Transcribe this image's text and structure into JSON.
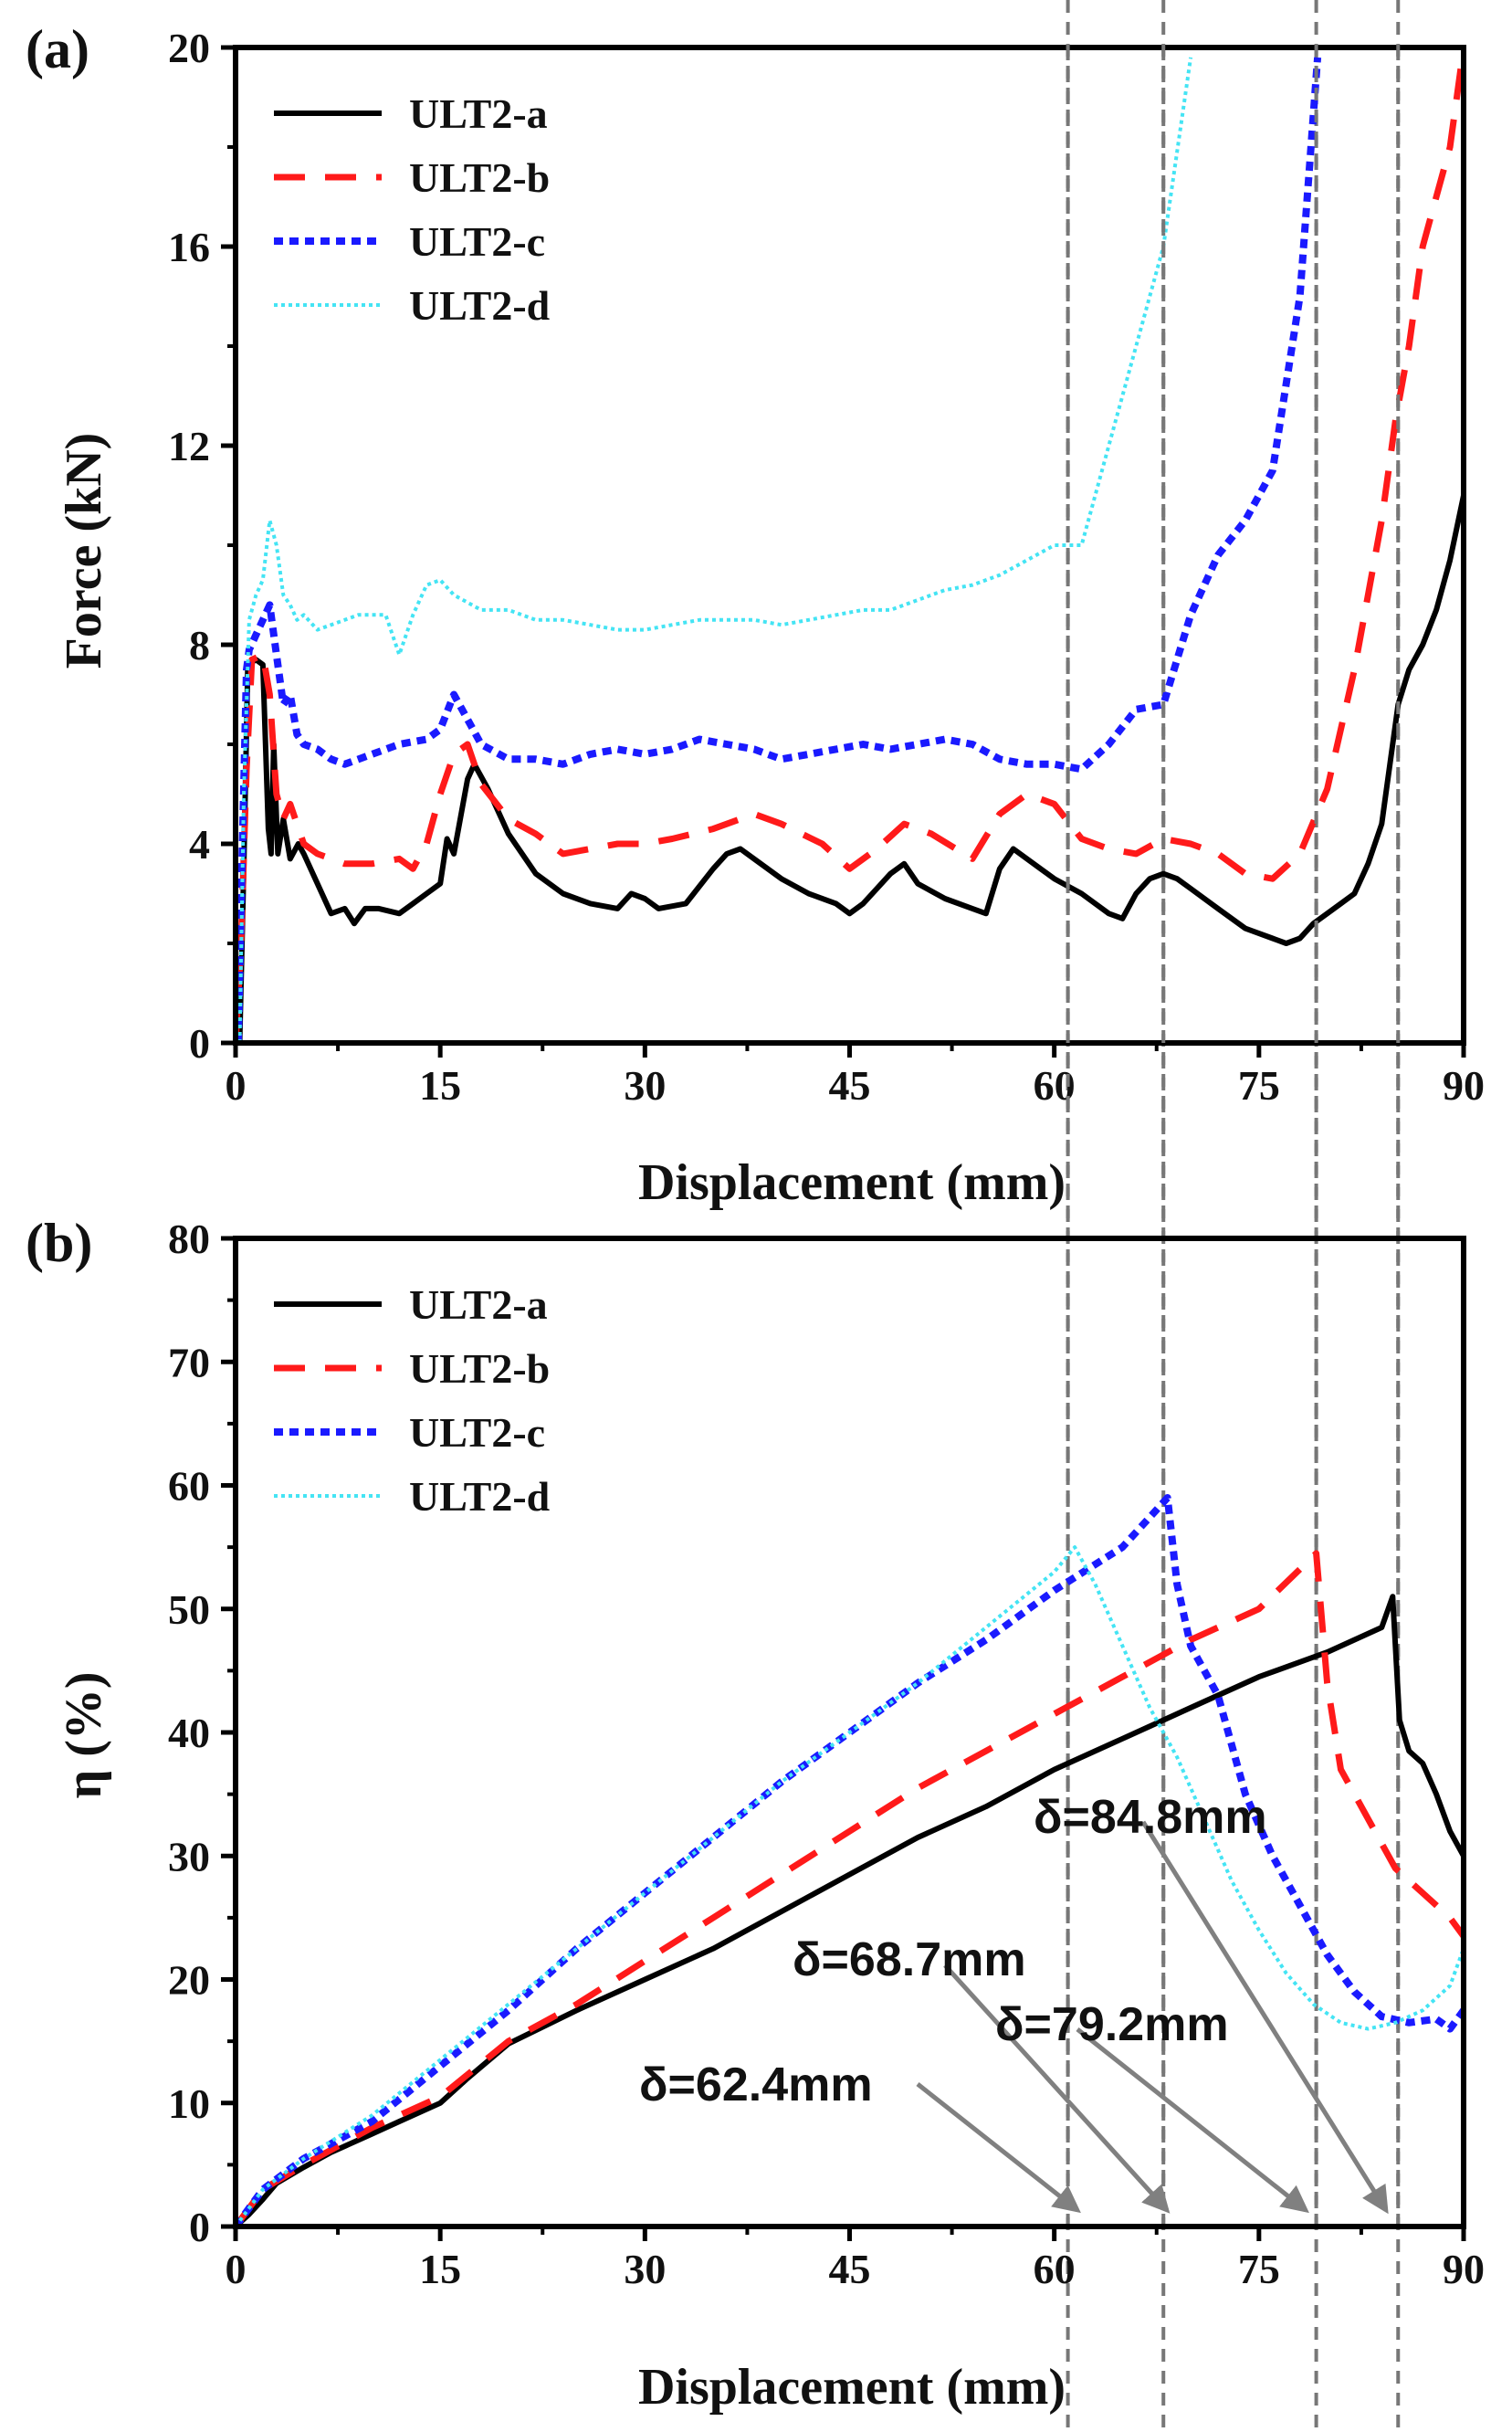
{
  "chart_data": [
    {
      "panel": "(a)",
      "type": "line",
      "xlabel": "Displacement (mm)",
      "ylabel": "Force (kN)",
      "xlim": [
        0,
        90
      ],
      "ylim": [
        0,
        20
      ],
      "xticks": [
        0,
        15,
        30,
        45,
        60,
        75,
        90
      ],
      "yticks": [
        0,
        4,
        8,
        12,
        16,
        20
      ],
      "grid": false,
      "legend": "top-left",
      "reference_lines_x": [
        61.0,
        68.0,
        79.2,
        85.2
      ],
      "series": [
        {
          "name": "ULT2-a",
          "color": "#000000",
          "style": "solid",
          "x": [
            0.3,
            0.6,
            0.9,
            1.5,
            2.0,
            2.4,
            2.6,
            2.8,
            3.1,
            3.5,
            4.0,
            4.6,
            5.0,
            6.0,
            7.0,
            8.0,
            8.7,
            9.5,
            10.5,
            12,
            13,
            14,
            15,
            15.5,
            16,
            17,
            17.5,
            18.5,
            20,
            22,
            24,
            26,
            28,
            29,
            30,
            31,
            33,
            35,
            36,
            37,
            38,
            40,
            42,
            44,
            45,
            46,
            47,
            48,
            49,
            50,
            52,
            54,
            55,
            56,
            57,
            59,
            60,
            62,
            64,
            65,
            66,
            67,
            68,
            69,
            70,
            72,
            74,
            76,
            77,
            78,
            79,
            80,
            81,
            82,
            83,
            84,
            84.6,
            85.2,
            86,
            87,
            88,
            89,
            90
          ],
          "values": [
            0,
            3.5,
            7.6,
            7.7,
            7.6,
            4.3,
            3.8,
            6.0,
            3.8,
            4.5,
            3.7,
            4.0,
            3.8,
            3.2,
            2.6,
            2.7,
            2.4,
            2.7,
            2.7,
            2.6,
            2.8,
            3.0,
            3.2,
            4.1,
            3.8,
            5.3,
            5.6,
            5.1,
            4.2,
            3.4,
            3.0,
            2.8,
            2.7,
            3.0,
            2.9,
            2.7,
            2.8,
            3.5,
            3.8,
            3.9,
            3.7,
            3.3,
            3.0,
            2.8,
            2.6,
            2.8,
            3.1,
            3.4,
            3.6,
            3.2,
            2.9,
            2.7,
            2.6,
            3.5,
            3.9,
            3.5,
            3.3,
            3.0,
            2.6,
            2.5,
            3.0,
            3.3,
            3.4,
            3.3,
            3.1,
            2.7,
            2.3,
            2.1,
            2.0,
            2.1,
            2.4,
            2.6,
            2.8,
            3.0,
            3.6,
            4.4,
            5.6,
            6.8,
            7.5,
            8.0,
            8.7,
            9.7,
            11.0
          ]
        },
        {
          "name": "ULT2-b",
          "color": "#ff1a1a",
          "style": "dashed",
          "x": [
            0,
            0.4,
            0.8,
            1.2,
            2.0,
            2.5,
            3.0,
            3.5,
            4.0,
            5.0,
            6.0,
            7.0,
            8.0,
            10,
            12,
            13,
            14,
            15,
            16,
            17,
            18,
            20,
            22,
            24,
            26,
            28,
            30,
            32,
            35,
            38,
            40,
            43,
            45,
            47,
            49,
            51,
            54,
            56,
            58,
            60,
            62,
            64,
            66,
            68,
            70,
            72,
            74,
            76,
            78,
            80,
            82,
            84,
            85,
            86,
            87,
            88,
            89,
            90
          ],
          "values": [
            0,
            2.0,
            5.5,
            7.7,
            7.8,
            7.0,
            5.0,
            4.5,
            4.8,
            4.0,
            3.8,
            3.7,
            3.6,
            3.6,
            3.7,
            3.5,
            4.0,
            5.0,
            5.8,
            6.0,
            5.2,
            4.5,
            4.2,
            3.8,
            3.9,
            4.0,
            4.0,
            4.1,
            4.3,
            4.6,
            4.4,
            4.0,
            3.5,
            3.9,
            4.4,
            4.2,
            3.7,
            4.6,
            5.0,
            4.8,
            4.1,
            3.9,
            3.8,
            4.1,
            4.0,
            3.8,
            3.4,
            3.3,
            3.8,
            5.1,
            7.5,
            10.5,
            12.5,
            14.0,
            16.0,
            17.0,
            18.0,
            20.0
          ]
        },
        {
          "name": "ULT2-c",
          "color": "#1a1aff",
          "style": "dotted",
          "x": [
            0.2,
            0.5,
            0.8,
            1.0,
            1.5,
            2.0,
            2.5,
            3.0,
            3.5,
            4.0,
            4.5,
            5.0,
            6.0,
            7.0,
            8.0,
            10,
            12,
            14,
            15,
            16,
            17,
            18,
            20,
            22,
            24,
            26,
            28,
            30,
            32,
            34,
            36,
            38,
            40,
            42,
            44,
            46,
            48,
            50,
            52,
            54,
            56,
            58,
            60,
            62,
            64,
            66,
            68,
            70,
            72,
            74,
            76,
            78,
            79.3
          ],
          "values": [
            0,
            4.0,
            7.5,
            7.9,
            8.2,
            8.5,
            8.8,
            7.8,
            6.8,
            7.0,
            6.2,
            6.0,
            5.9,
            5.7,
            5.6,
            5.8,
            6.0,
            6.1,
            6.3,
            7.0,
            6.5,
            6.0,
            5.7,
            5.7,
            5.6,
            5.8,
            5.9,
            5.8,
            5.9,
            6.1,
            6.0,
            5.9,
            5.7,
            5.8,
            5.9,
            6.0,
            5.9,
            6.0,
            6.1,
            6.0,
            5.7,
            5.6,
            5.6,
            5.5,
            6.0,
            6.7,
            6.8,
            8.6,
            9.8,
            10.5,
            11.5,
            15.0,
            19.8
          ]
        },
        {
          "name": "ULT2-d",
          "color": "#44e4f4",
          "style": "dotted-fine",
          "x": [
            0.3,
            0.6,
            1.0,
            1.5,
            2.0,
            2.5,
            3.0,
            3.5,
            4.0,
            4.5,
            5.0,
            6.0,
            7.0,
            8.0,
            9.0,
            10,
            11,
            12,
            13,
            14,
            15,
            16,
            18,
            20,
            22,
            24,
            26,
            28,
            30,
            32,
            34,
            36,
            38,
            40,
            42,
            44,
            46,
            48,
            50,
            52,
            54,
            56,
            58,
            60,
            62,
            64,
            66,
            68,
            70
          ],
          "values": [
            0,
            5.0,
            8.5,
            9.0,
            9.3,
            10.5,
            10.0,
            9.0,
            8.8,
            8.5,
            8.6,
            8.3,
            8.4,
            8.5,
            8.6,
            8.6,
            8.6,
            7.8,
            8.6,
            9.2,
            9.3,
            9.0,
            8.7,
            8.7,
            8.5,
            8.5,
            8.4,
            8.3,
            8.3,
            8.4,
            8.5,
            8.5,
            8.5,
            8.4,
            8.5,
            8.6,
            8.7,
            8.7,
            8.9,
            9.1,
            9.2,
            9.4,
            9.7,
            10.0,
            10.0,
            12.0,
            14.0,
            16.0,
            19.8
          ]
        }
      ]
    },
    {
      "panel": "(b)",
      "type": "line",
      "xlabel": "Displacement (mm)",
      "ylabel": "η (%)",
      "xlim": [
        0,
        90
      ],
      "ylim": [
        0,
        80
      ],
      "xticks": [
        0,
        15,
        30,
        45,
        60,
        75,
        90
      ],
      "yticks": [
        0,
        10,
        20,
        30,
        40,
        50,
        60,
        70,
        80
      ],
      "grid": false,
      "legend": "top-left",
      "reference_lines_x": [
        61.0,
        68.0,
        79.2,
        85.2
      ],
      "annotations": [
        {
          "text": "δ=62.4mm",
          "x": 62.4
        },
        {
          "text": "δ=68.7mm",
          "x": 68.7
        },
        {
          "text": "δ=79.2mm",
          "x": 79.2
        },
        {
          "text": "δ=84.8mm",
          "x": 84.8
        }
      ],
      "series": [
        {
          "name": "ULT2-a",
          "color": "#000000",
          "style": "solid",
          "x": [
            0,
            1,
            2,
            3,
            5,
            7,
            10,
            12,
            15,
            17,
            20,
            25,
            30,
            35,
            40,
            45,
            50,
            55,
            60,
            65,
            68,
            70,
            75,
            80,
            84,
            84.8,
            85.3,
            86,
            87,
            88,
            89,
            90
          ],
          "values": [
            0,
            1.0,
            2.2,
            3.5,
            4.8,
            6.0,
            7.5,
            8.5,
            10.0,
            12.0,
            14.8,
            17.5,
            20.0,
            22.5,
            25.5,
            28.5,
            31.5,
            34.0,
            37.0,
            39.5,
            41.0,
            42.0,
            44.5,
            46.5,
            48.5,
            51.0,
            41.0,
            38.5,
            37.5,
            35.0,
            32.0,
            30.0
          ]
        },
        {
          "name": "ULT2-b",
          "color": "#ff1a1a",
          "style": "dashed",
          "x": [
            0,
            2,
            5,
            10,
            15,
            20,
            25,
            30,
            35,
            40,
            45,
            50,
            55,
            60,
            65,
            70,
            75,
            79.2,
            80,
            81,
            83,
            85,
            87,
            89,
            90
          ],
          "values": [
            0,
            3.0,
            5.0,
            8.0,
            10.5,
            15.0,
            18.0,
            21.5,
            25.0,
            28.5,
            32.0,
            35.5,
            38.5,
            41.5,
            44.5,
            47.5,
            50.0,
            54.5,
            44.0,
            37.0,
            33.0,
            29.0,
            27.0,
            25.0,
            23.5
          ]
        },
        {
          "name": "ULT2-c",
          "color": "#1a1aff",
          "style": "dotted",
          "x": [
            0,
            2,
            5,
            10,
            15,
            20,
            25,
            30,
            35,
            40,
            45,
            50,
            55,
            60,
            65,
            68.3,
            69,
            70,
            72,
            74,
            76,
            78,
            80,
            82,
            84,
            86,
            88,
            89,
            90
          ],
          "values": [
            0,
            3.0,
            5.5,
            8.5,
            13.0,
            17.5,
            22.5,
            27.0,
            31.5,
            36.0,
            40.0,
            44.0,
            47.5,
            51.5,
            55.0,
            59.0,
            52.0,
            47.0,
            43.0,
            35.0,
            30.0,
            26.0,
            22.0,
            19.0,
            17.0,
            16.5,
            16.8,
            16.0,
            17.5
          ]
        },
        {
          "name": "ULT2-d",
          "color": "#44e4f4",
          "style": "dotted-fine",
          "x": [
            0,
            2,
            5,
            10,
            15,
            20,
            25,
            30,
            35,
            40,
            45,
            50,
            55,
            60,
            61.5,
            63,
            65,
            67,
            69,
            71,
            73,
            75,
            77,
            79,
            81,
            83,
            85,
            87,
            89,
            90
          ],
          "values": [
            0,
            3.0,
            5.5,
            9.0,
            13.5,
            18.0,
            22.5,
            27.0,
            31.5,
            36.0,
            40.0,
            44.0,
            48.5,
            53.0,
            55.0,
            52.0,
            47.0,
            42.0,
            38.0,
            33.0,
            28.0,
            24.0,
            20.5,
            18.0,
            16.5,
            16.0,
            16.5,
            17.5,
            19.5,
            22.5
          ]
        }
      ]
    }
  ]
}
